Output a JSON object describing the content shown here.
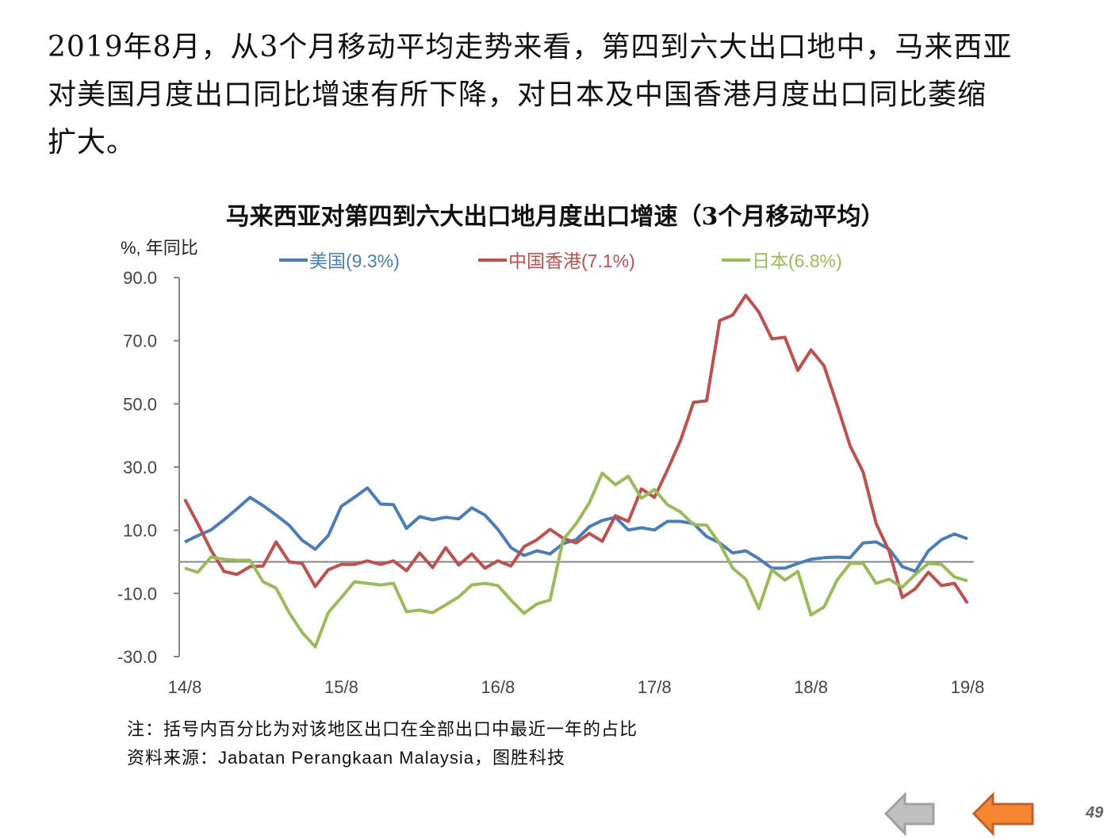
{
  "paragraph": {
    "lines": [
      "2019年8月，从3个月移动平均走势来看，第四到六大出口地中，马来西亚",
      "对美国月度出口同比增速有所下降，对日本及中国香港月度出口同比萎缩",
      "扩大。"
    ]
  },
  "chart_data": {
    "type": "line",
    "title": "马来西亚对第四到六大出口地月度出口增速（3个月移动平均）",
    "ylabel": "%, 年同比",
    "xlabel": "",
    "ylim": [
      -30,
      90
    ],
    "yticks": [
      90,
      70,
      50,
      30,
      10,
      -10,
      -30
    ],
    "ytick_labels": [
      "90.0",
      "70.0",
      "50.0",
      "30.0",
      "10.0",
      "-10.0",
      "-30.0"
    ],
    "x_start": "2014-08",
    "x_end": "2019-08",
    "xtick_labels": [
      "14/8",
      "15/8",
      "16/8",
      "17/8",
      "18/8",
      "19/8"
    ],
    "xtick_index": [
      0,
      12,
      24,
      36,
      48,
      60
    ],
    "grid": false,
    "legend_position": "top",
    "series": [
      {
        "name": "美国(9.3%)",
        "color": "#4a7ebb",
        "values": [
          6.3,
          8.3,
          10.1,
          13.3,
          16.8,
          20.4,
          17.8,
          14.8,
          11.6,
          6.8,
          4.0,
          8.3,
          17.6,
          20.4,
          23.4,
          18.3,
          18.1,
          10.6,
          14.3,
          13.3,
          14.1,
          13.6,
          17.1,
          14.8,
          10.3,
          4.5,
          2.0,
          3.5,
          2.5,
          5.8,
          7.0,
          11.1,
          13.1,
          14.1,
          10.1,
          10.8,
          10.1,
          12.8,
          12.8,
          12.1,
          8.0,
          6.0,
          2.8,
          3.5,
          1.0,
          -2.0,
          -2.0,
          -0.5,
          0.8,
          1.3,
          1.5,
          1.3,
          6.0,
          6.3,
          4.0,
          -1.5,
          -3.0,
          3.5,
          7.0,
          8.8,
          7.3
        ]
      },
      {
        "name": "中国香港(7.1%)",
        "color": "#c0504d",
        "values": [
          19.8,
          12.1,
          3.8,
          -3.0,
          -4.0,
          -1.5,
          -1.3,
          6.3,
          0.0,
          -0.5,
          -7.8,
          -2.5,
          -0.8,
          -0.8,
          0.3,
          -0.8,
          0.3,
          -2.8,
          2.8,
          -1.8,
          4.5,
          -1.0,
          2.5,
          -2.0,
          0.3,
          -1.3,
          4.8,
          7.0,
          10.3,
          7.5,
          6.0,
          9.0,
          6.5,
          14.6,
          12.8,
          23.1,
          20.4,
          29.1,
          38.4,
          50.5,
          51.0,
          76.4,
          78.1,
          84.4,
          79.1,
          70.6,
          71.1,
          60.6,
          67.1,
          62.1,
          49.7,
          36.7,
          28.4,
          12.1,
          3.3,
          -11.3,
          -8.5,
          -3.3,
          -7.5,
          -6.8,
          -13.1
        ]
      },
      {
        "name": "日本(6.8%)",
        "color": "#9bbb59",
        "values": [
          -2.0,
          -3.3,
          1.5,
          0.8,
          0.5,
          0.5,
          -6.3,
          -8.3,
          -16.1,
          -22.4,
          -26.9,
          -16.1,
          -11.3,
          -6.3,
          -6.8,
          -7.3,
          -6.8,
          -15.8,
          -15.3,
          -16.1,
          -13.6,
          -11.1,
          -7.3,
          -6.8,
          -7.5,
          -12.1,
          -16.3,
          -13.3,
          -12.1,
          7.0,
          12.1,
          18.6,
          28.1,
          24.4,
          27.1,
          20.1,
          22.9,
          18.1,
          15.8,
          11.8,
          11.6,
          5.8,
          -2.0,
          -5.5,
          -14.8,
          -2.5,
          -5.8,
          -3.0,
          -16.8,
          -14.3,
          -5.8,
          -0.5,
          -0.5,
          -6.8,
          -5.5,
          -8.0,
          -4.0,
          -0.5,
          -0.8,
          -4.8,
          -6.0
        ]
      }
    ]
  },
  "notes": {
    "note": "注：括号内百分比为对该地区出口在全部出口中最近一年的占比",
    "source": "资料来源：Jabatan Perangkaan Malaysia，图胜科技"
  },
  "nav": {
    "prev_icon": "left-arrow-gray-icon",
    "back_icon": "left-arrow-orange-icon",
    "page_number": "49"
  }
}
